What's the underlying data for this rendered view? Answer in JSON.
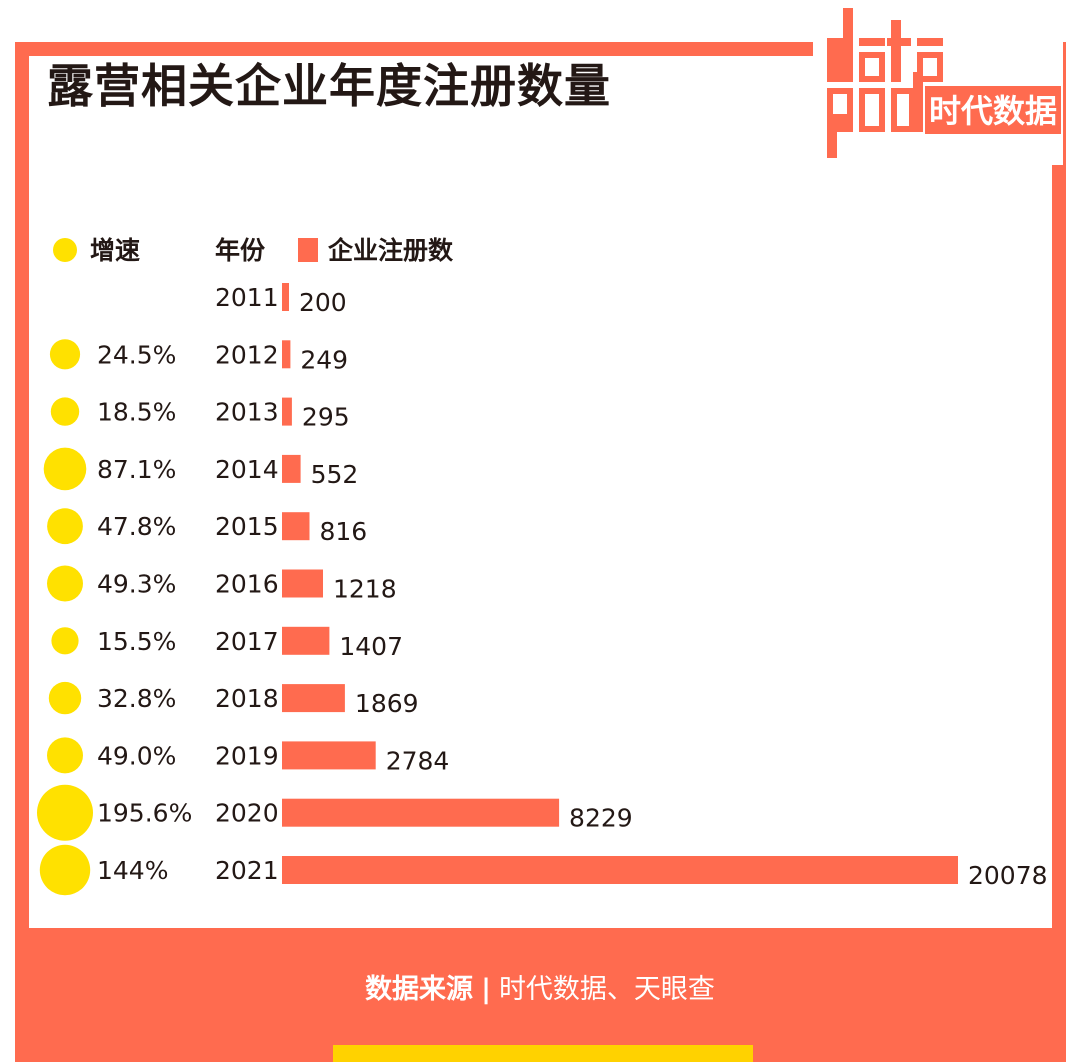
{
  "title": "露营相关企业年度注册数量",
  "logo": {
    "top_text": "data",
    "bottom_text": "god",
    "cn_text": "时代数据"
  },
  "legend": {
    "growth_label": "增速",
    "year_label": "年份",
    "count_label": "企业注册数"
  },
  "footer": {
    "source_label": "数据来源",
    "separator": "|",
    "source_value": "时代数据、天眼查"
  },
  "colors": {
    "frame": "#ff6b4f",
    "bar": "#ff6b4f",
    "bubble": "#ffe100",
    "strip": "#ffd200",
    "text": "#231815"
  },
  "chart_data": {
    "type": "bar",
    "orientation": "horizontal",
    "categories": [
      "2011",
      "2012",
      "2013",
      "2014",
      "2015",
      "2016",
      "2017",
      "2018",
      "2019",
      "2020",
      "2021"
    ],
    "series": [
      {
        "name": "企业注册数",
        "values": [
          200,
          249,
          295,
          552,
          816,
          1218,
          1407,
          1869,
          2784,
          8229,
          20078
        ]
      },
      {
        "name": "增速",
        "values": [
          null,
          24.5,
          18.5,
          87.1,
          47.8,
          49.3,
          15.5,
          32.8,
          49.0,
          195.6,
          144
        ]
      }
    ],
    "growth_labels": [
      "",
      "24.5%",
      "18.5%",
      "87.1%",
      "47.8%",
      "49.3%",
      "15.5%",
      "32.8%",
      "49.0%",
      "195.6%",
      "144%"
    ],
    "value_labels": [
      "200",
      "249",
      "295",
      "552",
      "816",
      "1218",
      "1407",
      "1869",
      "2784",
      "8229",
      "20078"
    ]
  }
}
